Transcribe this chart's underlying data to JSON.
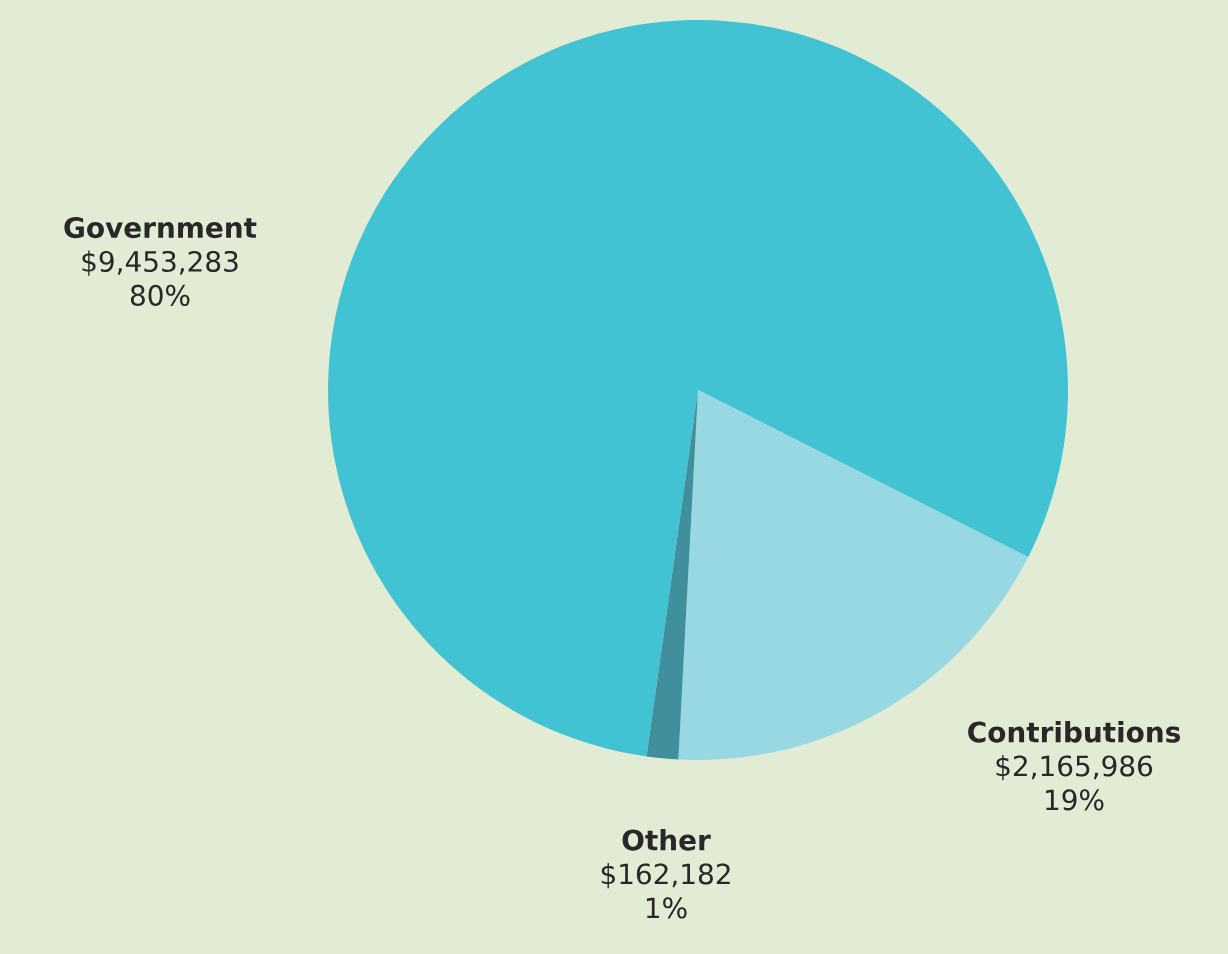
{
  "chart_data": {
    "type": "pie",
    "categories": [
      "Government",
      "Contributions",
      "Other"
    ],
    "values": [
      9453283,
      2165986,
      162182
    ],
    "colors": [
      "#42c3d3",
      "#98d8e2",
      "#3f8f9c"
    ],
    "value_labels": [
      "$9,453,283",
      "$2,165,986",
      "$162,182"
    ],
    "annotations": [
      {
        "text": "80%",
        "x": "Government"
      },
      {
        "text": "19%",
        "x": "Contributions"
      },
      {
        "text": "1%",
        "x": "Other"
      }
    ]
  }
}
